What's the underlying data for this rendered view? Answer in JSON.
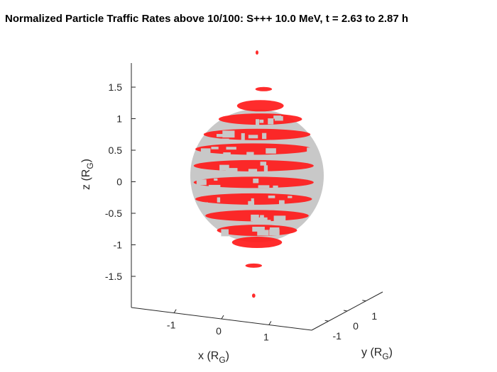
{
  "chart_data": {
    "type": "scatter",
    "projection": "3d",
    "title": "Normalized Particle Traffic Rates above 10/100: S+++ 10.0 MeV, t = 2.63 to 2.87 h",
    "xlabel": {
      "base": "x (R",
      "sub": "G",
      "close": ")"
    },
    "ylabel": {
      "base": "y (R",
      "sub": "G",
      "close": ")"
    },
    "zlabel": {
      "base": "z (R",
      "sub": "G",
      "close": ")"
    },
    "xlim": [
      -1.9,
      1.9
    ],
    "ylim": [
      -1.9,
      1.9
    ],
    "zlim": [
      -1.95,
      1.9
    ],
    "x_ticks": [
      {
        "v": -1,
        "label": "-1"
      },
      {
        "v": 0,
        "label": "0"
      },
      {
        "v": 1,
        "label": "1"
      }
    ],
    "y_ticks": [
      {
        "v": -1,
        "label": "-1"
      },
      {
        "v": 0,
        "label": "0"
      },
      {
        "v": 1,
        "label": "1"
      }
    ],
    "z_ticks": [
      {
        "v": 1.5,
        "label": "1.5"
      },
      {
        "v": 1,
        "label": "1"
      },
      {
        "v": 0.5,
        "label": "0.5"
      },
      {
        "v": 0,
        "label": "0"
      },
      {
        "v": -0.5,
        "label": "-0.5"
      },
      {
        "v": -1,
        "label": "-1"
      },
      {
        "v": -1.5,
        "label": "-1.5"
      }
    ],
    "sphere": {
      "center": [
        0,
        0,
        0
      ],
      "radius": 1,
      "color": "#c8c8c8"
    },
    "traffic_color": "#ff1a1a",
    "traffic_regions": [
      {
        "z": 1.3,
        "y": 0.1,
        "w": 0.25
      },
      {
        "z": 1.05,
        "y": 0.05,
        "w": 0.7
      },
      {
        "z": 0.85,
        "y": 0.05,
        "w": 1.25
      },
      {
        "z": 0.62,
        "y": 0.0,
        "w": 1.6
      },
      {
        "z": 0.4,
        "y": -0.05,
        "w": 1.75
      },
      {
        "z": 0.15,
        "y": -0.05,
        "w": 1.8
      },
      {
        "z": -0.1,
        "y": -0.05,
        "w": 1.8
      },
      {
        "z": -0.35,
        "y": -0.05,
        "w": 1.75
      },
      {
        "z": -0.6,
        "y": 0.0,
        "w": 1.55
      },
      {
        "z": -0.82,
        "y": 0.0,
        "w": 1.2
      },
      {
        "z": -1.0,
        "y": 0.0,
        "w": 0.75
      },
      {
        "z": -1.35,
        "y": -0.05,
        "w": 0.25
      },
      {
        "z": -1.8,
        "y": -0.05,
        "w": 0.05
      },
      {
        "z": 1.85,
        "y": 0.0,
        "w": 0.04
      }
    ]
  },
  "colors": {
    "sphere": "#c8c8c8",
    "traffic": "#ff1a1a",
    "axes": "#262626"
  }
}
